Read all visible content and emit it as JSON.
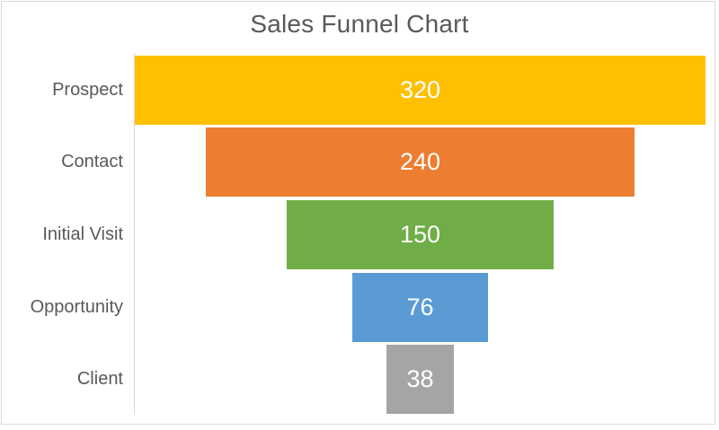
{
  "chart_data": {
    "type": "bar",
    "subtype": "funnel",
    "title": "Sales Funnel Chart",
    "categories": [
      "Prospect",
      "Contact",
      "Initial Visit",
      "Opportunity",
      "Client"
    ],
    "values": [
      320,
      240,
      150,
      76,
      38
    ],
    "data_labels": [
      "320",
      "240",
      "150",
      "76",
      "38"
    ],
    "colors": [
      "#FFC000",
      "#ED7D31",
      "#70AD47",
      "#5B9BD5",
      "#A5A5A5"
    ],
    "max_value": 320,
    "xlim": [
      0,
      320
    ],
    "orientation": "horizontal-centered",
    "legend": "none",
    "gridlines": false,
    "title_color": "#595959",
    "category_label_color": "#595959",
    "value_label_color": "#FFFFFF",
    "axis_line_color": "#D9D9D9",
    "border_color": "#D9D9D9",
    "background_color": "#FFFFFF"
  }
}
